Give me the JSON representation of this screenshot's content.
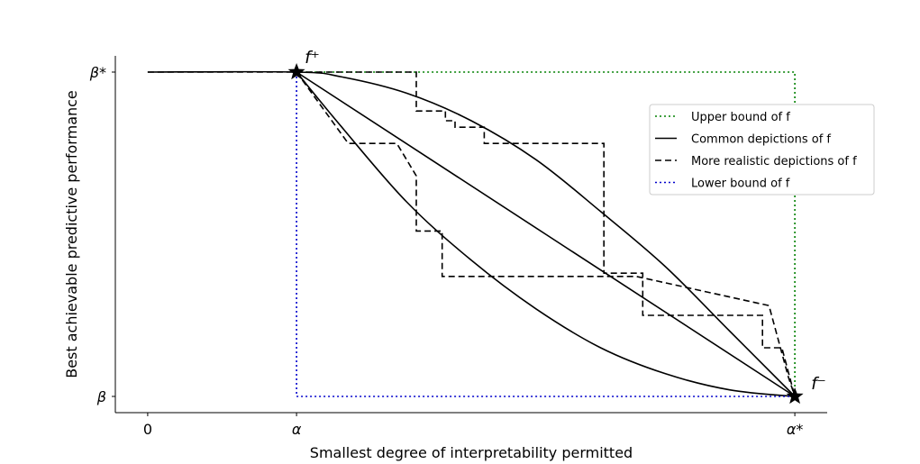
{
  "chart_data": {
    "type": "line",
    "xlabel": "Smallest degree of interpretability permitted",
    "ylabel": "Best achievable predictive performance",
    "xlim": [
      -0.05,
      1.05
    ],
    "ylim": [
      -0.05,
      1.05
    ],
    "x_ticks": [
      {
        "value": 0,
        "label": "0"
      },
      {
        "value": 0.23,
        "label": "α"
      },
      {
        "value": 1,
        "label": "α*"
      }
    ],
    "y_ticks": [
      {
        "value": 0,
        "label": "β"
      },
      {
        "value": 1,
        "label": "β*"
      }
    ],
    "series": [
      {
        "name": "Upper bound of f",
        "style": "dotted",
        "color": "#008000",
        "x": [
          0.23,
          1.0,
          1.0
        ],
        "y": [
          1.0,
          1.0,
          0.0
        ]
      },
      {
        "name": "Common depictions of f",
        "style": "solid",
        "color": "#000000",
        "curves": [
          {
            "x": [
              0,
              0.23,
              0.3,
              0.4,
              0.5,
              0.6,
              0.7,
              0.8,
              0.9,
              1.0
            ],
            "y": [
              1,
              1,
              0.985,
              0.935,
              0.85,
              0.73,
              0.57,
              0.4,
              0.2,
              0
            ]
          },
          {
            "x": [
              0.23,
              1.0
            ],
            "y": [
              1,
              0
            ]
          },
          {
            "x": [
              0.23,
              0.3,
              0.4,
              0.5,
              0.6,
              0.7,
              0.8,
              0.9,
              1.0
            ],
            "y": [
              1,
              0.83,
              0.6,
              0.42,
              0.27,
              0.15,
              0.07,
              0.02,
              0
            ]
          }
        ]
      },
      {
        "name": "More realistic depictions of f",
        "style": "dashed",
        "color": "#000000",
        "curves": [
          {
            "x": [
              0,
              0.415,
              0.415,
              0.46,
              0.46,
              0.475,
              0.475,
              0.52,
              0.52,
              0.705,
              0.705,
              0.765,
              0.765,
              0.95,
              0.95,
              0.98,
              1.0
            ],
            "y": [
              1,
              1,
              0.88,
              0.88,
              0.85,
              0.85,
              0.83,
              0.83,
              0.78,
              0.78,
              0.38,
              0.38,
              0.25,
              0.25,
              0.15,
              0.15,
              0
            ]
          },
          {
            "x": [
              0.23,
              0.31,
              0.385,
              0.415,
              0.415,
              0.455,
              0.455,
              0.705,
              0.755,
              0.96,
              0.99,
              1.0
            ],
            "y": [
              1,
              0.78,
              0.78,
              0.68,
              0.51,
              0.51,
              0.37,
              0.37,
              0.37,
              0.28,
              0.06,
              0
            ]
          }
        ]
      },
      {
        "name": "Lower bound of f",
        "style": "dotted",
        "color": "#0000cc",
        "x": [
          0.23,
          0.23,
          1.0
        ],
        "y": [
          1.0,
          0.0,
          0.0
        ]
      }
    ],
    "points": [
      {
        "label": "f⁺",
        "x": 0.23,
        "y": 1
      },
      {
        "label": "f⁻",
        "x": 1.0,
        "y": 0
      }
    ],
    "legend": "right",
    "grid": false
  }
}
